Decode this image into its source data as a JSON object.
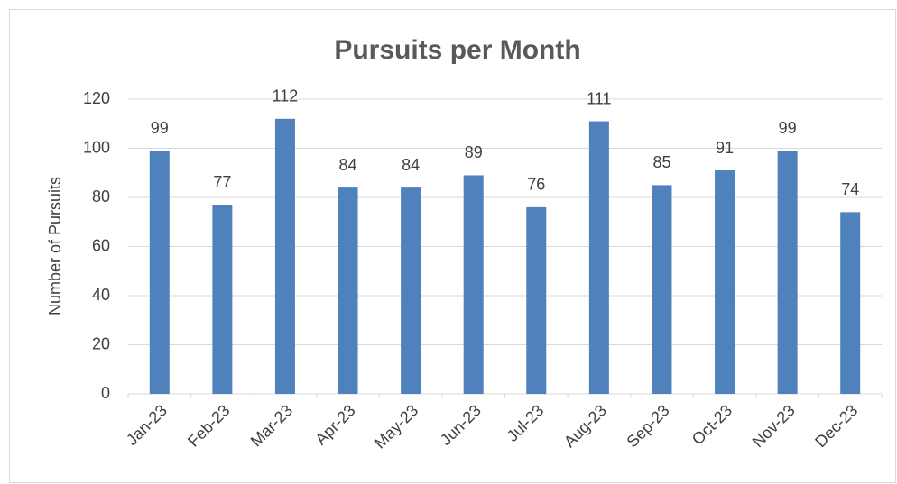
{
  "chart_data": {
    "type": "bar",
    "title": "Pursuits per Month",
    "y_label": "Number of Pursuits",
    "categories": [
      "Jan-23",
      "Feb-23",
      "Mar-23",
      "Apr-23",
      "May-23",
      "Jun-23",
      "Jul-23",
      "Aug-23",
      "Sep-23",
      "Oct-23",
      "Nov-23",
      "Dec-23"
    ],
    "values": [
      99,
      77,
      112,
      84,
      84,
      89,
      76,
      111,
      85,
      91,
      99,
      74
    ],
    "color": "#4f81bd",
    "ylim": [
      0,
      120
    ],
    "yticks": [
      0,
      20,
      40,
      60,
      80,
      100,
      120
    ],
    "grid": true
  }
}
